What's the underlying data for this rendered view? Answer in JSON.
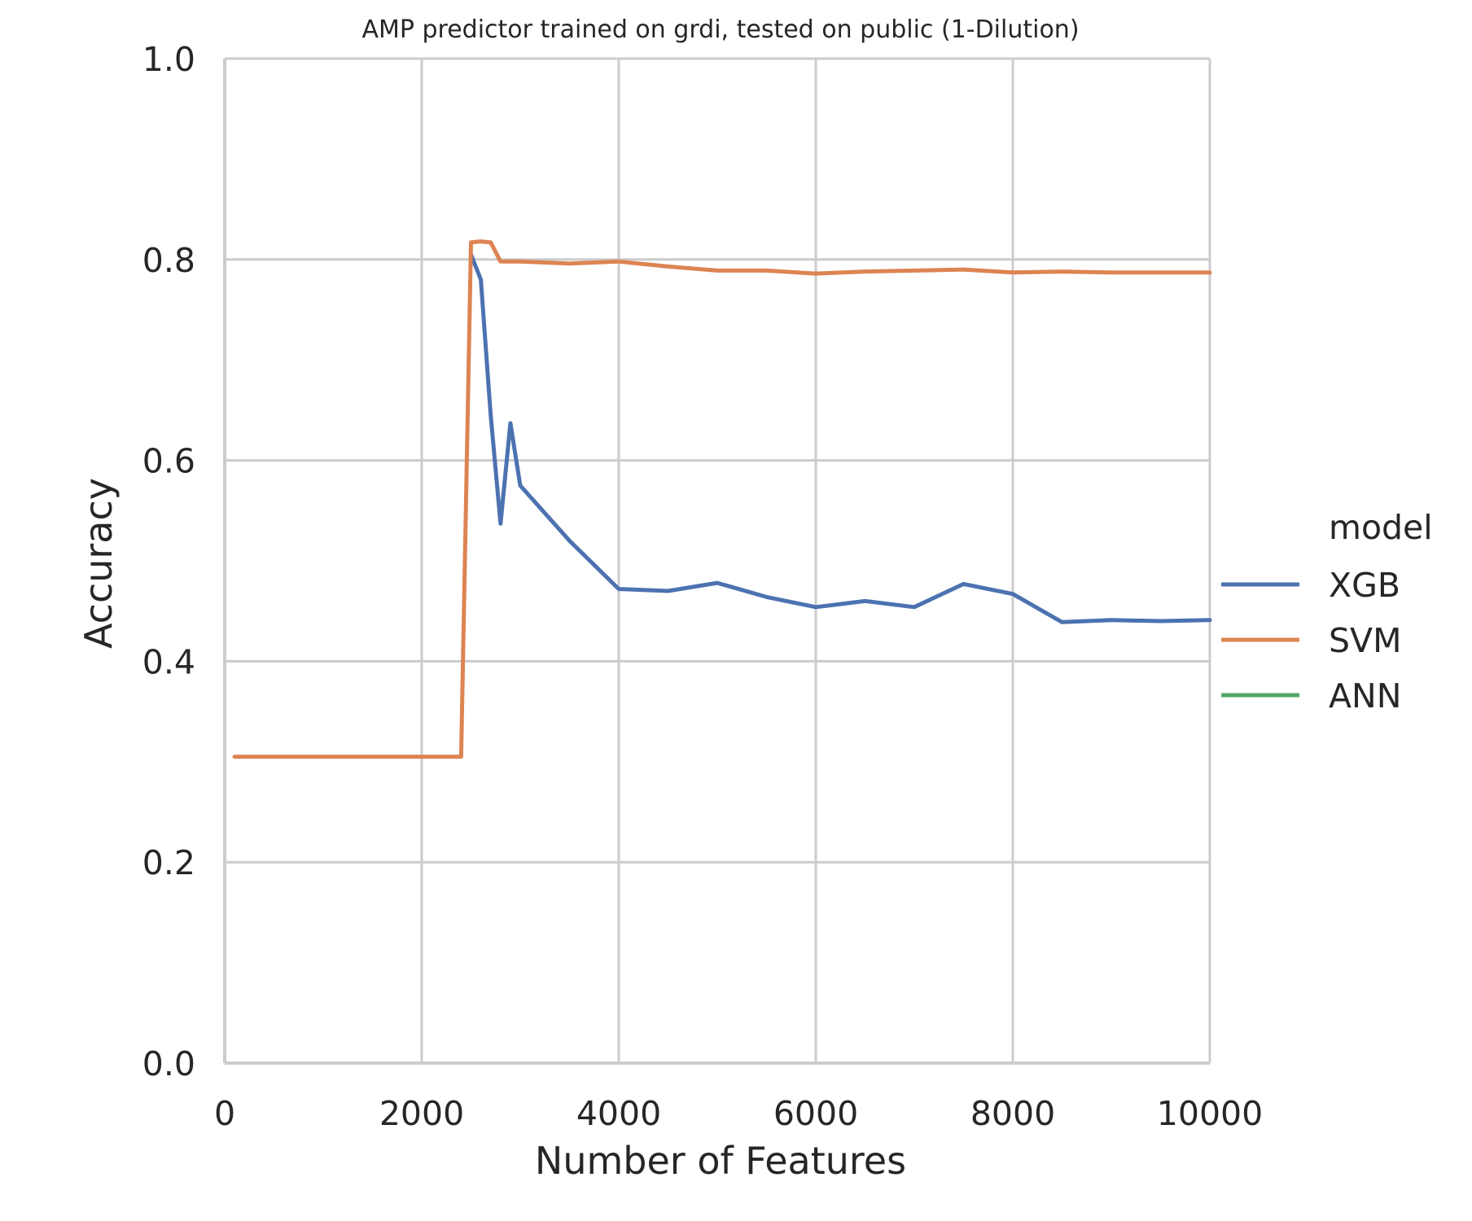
{
  "chart_data": {
    "type": "line",
    "title": "AMP predictor trained on grdi, tested on public (1-Dilution)",
    "xlabel": "Number of Features",
    "ylabel": "Accuracy",
    "xlim": [
      0,
      10000
    ],
    "ylim": [
      0,
      1.0
    ],
    "xticks": [
      "0",
      "2000",
      "4000",
      "6000",
      "8000",
      "10000"
    ],
    "yticks": [
      "0.0",
      "0.2",
      "0.4",
      "0.6",
      "0.8",
      "1.0"
    ],
    "grid": true,
    "legend": {
      "title": "model",
      "placement": "right"
    },
    "series": [
      {
        "name": "XGB",
        "color": "#4c72b0",
        "x": [
          2500,
          2600,
          2700,
          2800,
          2900,
          3000,
          3500,
          4000,
          4500,
          5000,
          5500,
          6000,
          6500,
          7000,
          7500,
          8000,
          8500,
          9000,
          9500,
          10000
        ],
        "y": [
          0.805,
          0.78,
          0.645,
          0.537,
          0.637,
          0.575,
          0.52,
          0.472,
          0.47,
          0.478,
          0.464,
          0.454,
          0.46,
          0.454,
          0.477,
          0.467,
          0.439,
          0.441,
          0.44,
          0.441
        ]
      },
      {
        "name": "SVM",
        "color": "#dd8452",
        "x": [
          100,
          500,
          1000,
          1500,
          2000,
          2400,
          2500,
          2600,
          2700,
          2800,
          3000,
          3500,
          4000,
          4500,
          5000,
          5500,
          6000,
          6500,
          7000,
          7500,
          8000,
          8500,
          9000,
          9500,
          10000
        ],
        "y": [
          0.305,
          0.305,
          0.305,
          0.305,
          0.305,
          0.305,
          0.817,
          0.818,
          0.817,
          0.798,
          0.798,
          0.796,
          0.798,
          0.793,
          0.789,
          0.789,
          0.786,
          0.788,
          0.789,
          0.79,
          0.787,
          0.788,
          0.787,
          0.787,
          0.787
        ]
      },
      {
        "name": "ANN",
        "color": "#55a868",
        "x": [],
        "y": []
      }
    ]
  }
}
